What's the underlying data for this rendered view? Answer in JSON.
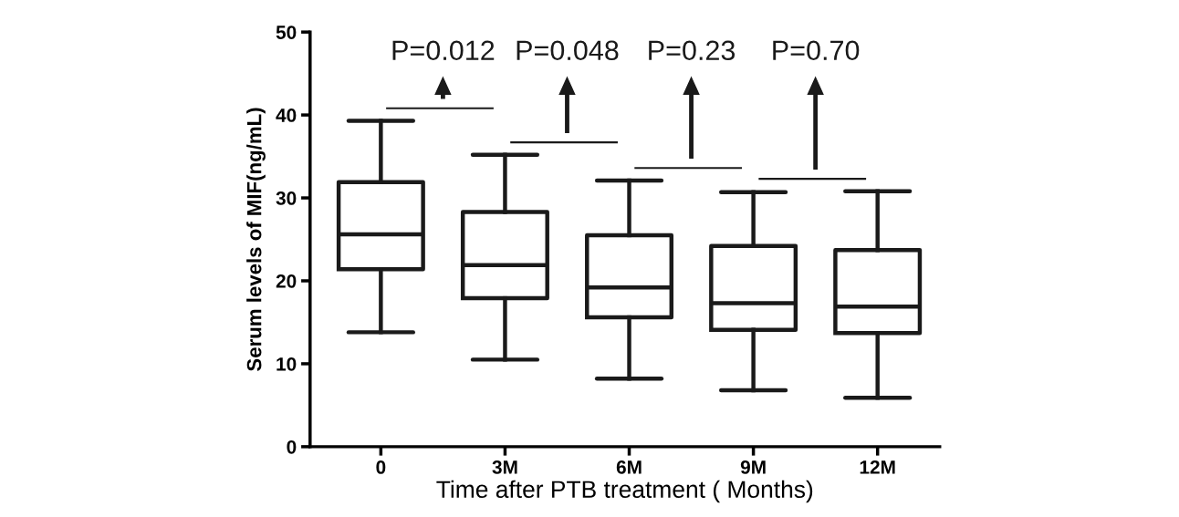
{
  "chart_data": {
    "type": "box",
    "xlabel": "Time after PTB treatment ( Months)",
    "ylabel": "Serum levels of MIF(ng/mL)",
    "categories": [
      "0",
      "3M",
      "6M",
      "9M",
      "12M"
    ],
    "boxes": [
      {
        "low": 13.8,
        "q1": 21.4,
        "median": 25.6,
        "q3": 31.9,
        "high": 39.3
      },
      {
        "low": 10.5,
        "q1": 17.9,
        "median": 21.9,
        "q3": 28.3,
        "high": 35.2
      },
      {
        "low": 8.2,
        "q1": 15.6,
        "median": 19.2,
        "q3": 25.5,
        "high": 32.1
      },
      {
        "low": 6.8,
        "q1": 14.1,
        "median": 17.3,
        "q3": 24.2,
        "high": 30.7
      },
      {
        "low": 5.9,
        "q1": 13.7,
        "median": 16.9,
        "q3": 23.7,
        "high": 30.8
      }
    ],
    "color": "#1a1a1a",
    "ylim": [
      0,
      50
    ],
    "yticks": [
      0,
      10,
      20,
      30,
      40,
      50
    ],
    "grid": false,
    "annotations": [
      "P=0.012",
      "P=0.048",
      "P=0.23",
      "P=0.70"
    ]
  }
}
